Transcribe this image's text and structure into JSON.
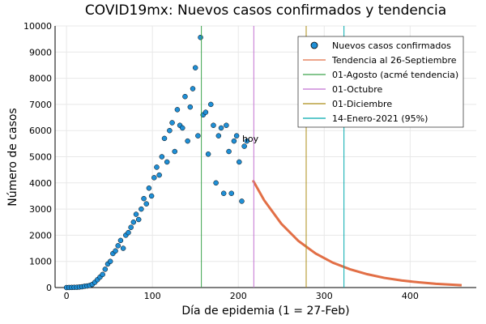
{
  "chart_data": {
    "type": "scatter",
    "title": "COVID19mx: Nuevos casos confirmados y tendencia",
    "x_label": "Día de epidemia (1 = 27-Feb)",
    "y_label": "Número de casos",
    "xlim": [
      -13.3,
      477
    ],
    "ylim": [
      0,
      10000
    ],
    "xticks": [
      0,
      100,
      200,
      300,
      400
    ],
    "yticks": [
      0,
      1000,
      2000,
      3000,
      4000,
      5000,
      6000,
      7000,
      8000,
      9000,
      10000
    ],
    "grid": true,
    "legend": "top-right",
    "annotations": [
      {
        "text": "hoy",
        "x": 214,
        "y": 5700
      }
    ],
    "series": [
      {
        "name": "Nuevos casos confirmados",
        "type": "scatter",
        "color": "#1f8fd6",
        "x": [
          0,
          3,
          6,
          9,
          12,
          15,
          18,
          21,
          24,
          27,
          30,
          33,
          36,
          39,
          42,
          45,
          48,
          51,
          54,
          57,
          60,
          63,
          66,
          69,
          72,
          75,
          78,
          81,
          84,
          87,
          90,
          93,
          96,
          99,
          102,
          105,
          108,
          111,
          114,
          117,
          120,
          123,
          126,
          129,
          132,
          135,
          138,
          141,
          144,
          147,
          150,
          153,
          156,
          159,
          162,
          165,
          168,
          171,
          174,
          177,
          180,
          183,
          186,
          189,
          192,
          195,
          198,
          201,
          204,
          207,
          210
        ],
        "values": [
          0,
          2,
          5,
          8,
          10,
          20,
          30,
          50,
          60,
          80,
          120,
          200,
          300,
          400,
          500,
          700,
          900,
          1000,
          1300,
          1400,
          1600,
          1800,
          1500,
          2000,
          2100,
          2300,
          2500,
          2800,
          2600,
          3000,
          3400,
          3200,
          3800,
          3500,
          4200,
          4600,
          4300,
          5000,
          5700,
          4800,
          6000,
          6300,
          5200,
          6800,
          6200,
          6100,
          7300,
          5600,
          6900,
          7600,
          8400,
          5800,
          9560,
          6600,
          6700,
          5100,
          7000,
          6200,
          4000,
          5800,
          6100,
          3600,
          6200,
          5200,
          3600,
          5600,
          5800,
          4800,
          3300,
          5400,
          5600
        ]
      },
      {
        "name": "Tendencia al 26-Septiembre",
        "type": "line",
        "color": "#e26f46",
        "x": [
          217,
          230,
          250,
          270,
          290,
          310,
          330,
          350,
          370,
          390,
          410,
          430,
          460
        ],
        "values": [
          4100,
          3340,
          2440,
          1780,
          1300,
          950,
          700,
          510,
          370,
          270,
          200,
          145,
          90
        ]
      },
      {
        "name": "01-Agosto (acmé tendencia)",
        "type": "vline",
        "color": "#3da44d",
        "x": 157
      },
      {
        "name": "01-Octubre",
        "type": "vline",
        "color": "#c271d2",
        "x": 218
      },
      {
        "name": "01-Diciembre",
        "type": "vline",
        "color": "#ac8d18",
        "x": 279
      },
      {
        "name": "14-Enero-2021 (95%)",
        "type": "vline",
        "color": "#00a9ad",
        "x": 323
      }
    ]
  }
}
